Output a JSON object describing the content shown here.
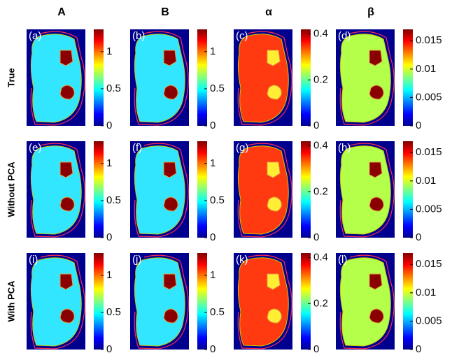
{
  "columns": [
    {
      "header": "A",
      "colorbar": {
        "range": [
          0,
          1.3
        ],
        "ticks": [
          0,
          0.5,
          1
        ]
      }
    },
    {
      "header": "B",
      "colorbar": {
        "range": [
          0,
          1.3
        ],
        "ticks": [
          0,
          0.5,
          1
        ]
      }
    },
    {
      "header": "α",
      "colorbar": {
        "range": [
          0,
          0.42
        ],
        "ticks": [
          0,
          0.2,
          0.4
        ]
      }
    },
    {
      "header": "β",
      "colorbar": {
        "range": [
          0,
          0.017
        ],
        "ticks": [
          0,
          0.005,
          0.01,
          0.015
        ]
      }
    }
  ],
  "rows": [
    {
      "label": "True",
      "panels": [
        "(a)",
        "(b)",
        "(c)",
        "(d)"
      ]
    },
    {
      "label": "Without PCA",
      "panels": [
        "(e)",
        "(f)",
        "(g)",
        "(h)"
      ]
    },
    {
      "label": "With PCA",
      "panels": [
        "(i)",
        "(j)",
        "(k)",
        "(l)"
      ]
    }
  ]
}
